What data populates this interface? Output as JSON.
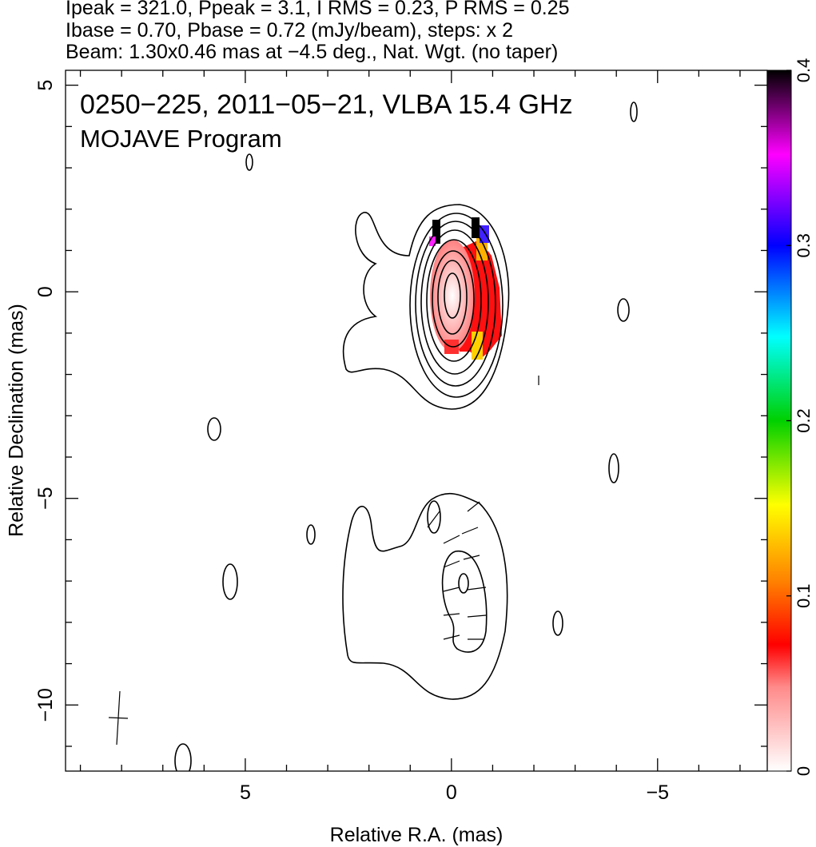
{
  "chart_data": {
    "type": "contour",
    "header_lines": [
      "Ipeak = 321.0, Ppeak = 3.1, I RMS = 0.23, P RMS = 0.25",
      "Ibase = 0.70, Pbase = 0.72 (mJy/beam), steps: x 2",
      "Beam: 1.30x0.46 mas at −4.5 deg., Nat. Wgt. (no taper)"
    ],
    "annotations": [
      "0250−225, 2011−05−21, VLBA 15.4 GHz",
      "MOJAVE Program"
    ],
    "xlabel": "Relative R.A. (mas)",
    "ylabel": "Relative Declination (mas)",
    "xlim": [
      9.36,
      -7.66
    ],
    "xticks": [
      5,
      0,
      {
        "value": -5,
        "label": "−5"
      }
    ],
    "xminorticks": [
      9,
      8,
      7,
      6,
      4,
      3,
      2,
      1,
      -1,
      -2,
      -3,
      -4,
      -6,
      -7
    ],
    "ylim": [
      -11.6,
      5.36
    ],
    "yticks": [
      5,
      0,
      {
        "value": -5,
        "label": "−5"
      },
      {
        "value": -10,
        "label": "−10"
      }
    ],
    "yminorticks": [
      4,
      3,
      2,
      1,
      -1,
      -2,
      -3,
      -4,
      -6,
      -7,
      -8,
      -9,
      -11
    ],
    "colorbar": {
      "lim": [
        0,
        0.4
      ],
      "ticks": [
        0,
        0.1,
        0.2,
        0.3,
        0.4
      ]
    }
  }
}
